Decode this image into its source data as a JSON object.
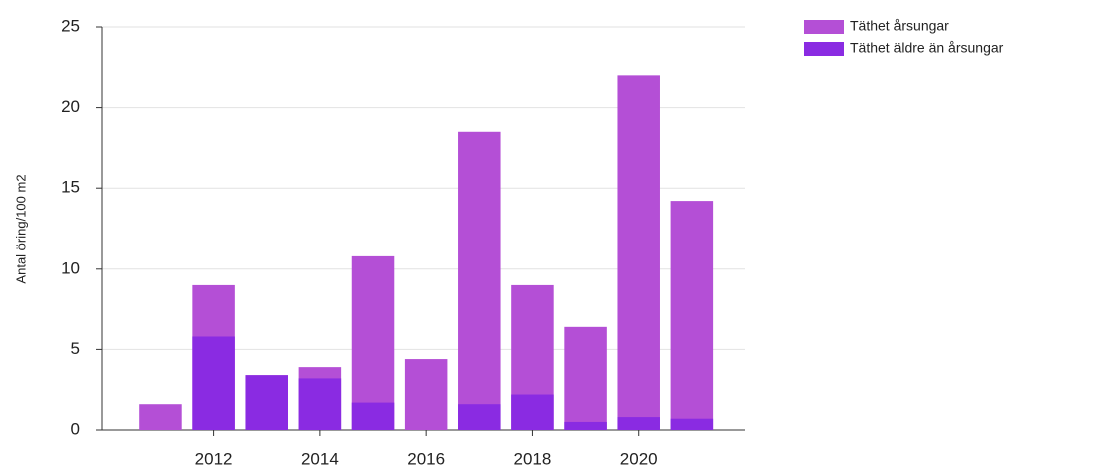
{
  "chart_data": {
    "type": "bar",
    "y_label": "Antal öring/100 m2",
    "x": [
      2011,
      2012,
      2013,
      2014,
      2015,
      2016,
      2017,
      2018,
      2019,
      2020,
      2021
    ],
    "series": [
      {
        "name": "Täthet årsungar",
        "color": "#b44fd6",
        "values": [
          1.6,
          9.0,
          3.4,
          3.9,
          10.8,
          4.4,
          18.5,
          9.0,
          6.4,
          22.0,
          14.2
        ]
      },
      {
        "name": "Täthet äldre än årsungar",
        "color": "#8a2be2",
        "values": [
          0,
          5.8,
          3.4,
          3.2,
          1.7,
          0,
          1.6,
          2.2,
          0.5,
          0.8,
          0.7
        ]
      }
    ],
    "xlim": [
      2009.9,
      2022.0
    ],
    "xticks": [
      2012,
      2014,
      2016,
      2018,
      2020
    ],
    "ylim": [
      0,
      25
    ],
    "yticks": [
      0,
      5,
      10,
      15,
      20,
      25
    ],
    "grid": true,
    "legend": "top-right"
  }
}
